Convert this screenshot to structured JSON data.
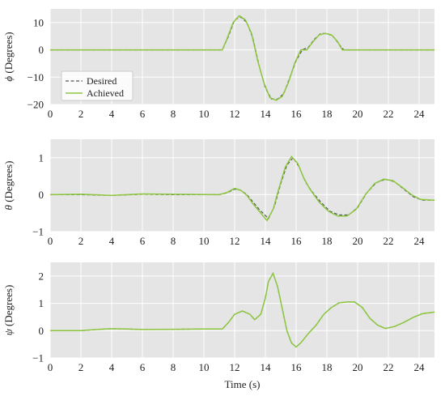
{
  "chart_data": [
    {
      "type": "line",
      "ylabel_symbol": "ϕ",
      "ylabel_text": " (Degrees)",
      "xlabel": "",
      "xlim": [
        0,
        25
      ],
      "ylim": [
        -20,
        15
      ],
      "xticks": [
        0,
        2,
        4,
        6,
        8,
        10,
        12,
        14,
        16,
        18,
        20,
        22,
        24
      ],
      "yticks": [
        -20,
        -10,
        0,
        10
      ],
      "grid": true,
      "legend": "center-left",
      "series": [
        {
          "name": "Desired",
          "style": "dashed",
          "color": "#555555",
          "points": [
            [
              0,
              0
            ],
            [
              11.2,
              0
            ],
            [
              11.6,
              5
            ],
            [
              12,
              11
            ],
            [
              12.4,
              12
            ],
            [
              12.8,
              10
            ],
            [
              13.2,
              4
            ],
            [
              13.6,
              -6
            ],
            [
              14,
              -14
            ],
            [
              14.4,
              -18
            ],
            [
              14.8,
              -18
            ],
            [
              15.2,
              -16
            ],
            [
              15.6,
              -10
            ],
            [
              16,
              -4
            ],
            [
              16.4,
              0
            ],
            [
              16.8,
              1
            ],
            [
              17.2,
              4
            ],
            [
              17.6,
              6
            ],
            [
              18,
              6
            ],
            [
              18.4,
              5
            ],
            [
              18.8,
              2
            ],
            [
              19.1,
              0
            ],
            [
              25,
              0
            ]
          ]
        },
        {
          "name": "Achieved",
          "style": "solid",
          "color": "#8cc63f",
          "points": [
            [
              0,
              0
            ],
            [
              11.2,
              0
            ],
            [
              11.5,
              4
            ],
            [
              11.9,
              10
            ],
            [
              12.3,
              12.5
            ],
            [
              12.7,
              11
            ],
            [
              13.1,
              6
            ],
            [
              13.5,
              -4
            ],
            [
              13.9,
              -12
            ],
            [
              14.3,
              -17.5
            ],
            [
              14.7,
              -18.5
            ],
            [
              15.1,
              -17
            ],
            [
              15.5,
              -12
            ],
            [
              15.9,
              -5
            ],
            [
              16.3,
              0
            ],
            [
              16.7,
              0
            ],
            [
              17.1,
              3
            ],
            [
              17.5,
              5.5
            ],
            [
              17.9,
              6
            ],
            [
              18.3,
              5.5
            ],
            [
              18.7,
              3
            ],
            [
              19,
              0
            ],
            [
              25,
              0
            ]
          ]
        }
      ]
    },
    {
      "type": "line",
      "ylabel_symbol": "θ",
      "ylabel_text": " (Degrees)",
      "xlabel": "",
      "xlim": [
        0,
        25
      ],
      "ylim": [
        -1,
        1.5
      ],
      "xticks": [
        0,
        2,
        4,
        6,
        8,
        10,
        12,
        14,
        16,
        18,
        20,
        22,
        24
      ],
      "yticks": [
        -1,
        0,
        1
      ],
      "grid": true,
      "series": [
        {
          "name": "Desired",
          "style": "dashed",
          "color": "#555555",
          "points": [
            [
              0,
              0
            ],
            [
              2,
              0
            ],
            [
              4,
              -0.02
            ],
            [
              6,
              0.01
            ],
            [
              8,
              0
            ],
            [
              11,
              0
            ],
            [
              11.5,
              0.05
            ],
            [
              12,
              0.15
            ],
            [
              12.4,
              0.12
            ],
            [
              12.8,
              0
            ],
            [
              13.2,
              -0.2
            ],
            [
              13.6,
              -0.4
            ],
            [
              14.2,
              -0.65
            ],
            [
              14.6,
              -0.3
            ],
            [
              15,
              0.3
            ],
            [
              15.4,
              0.8
            ],
            [
              15.8,
              1.0
            ],
            [
              16.2,
              0.75
            ],
            [
              16.6,
              0.35
            ],
            [
              17,
              0.1
            ],
            [
              17.6,
              -0.2
            ],
            [
              18.2,
              -0.45
            ],
            [
              18.8,
              -0.55
            ],
            [
              19.4,
              -0.55
            ],
            [
              20,
              -0.35
            ],
            [
              20.6,
              0.05
            ],
            [
              21.2,
              0.32
            ],
            [
              21.8,
              0.42
            ],
            [
              22.4,
              0.35
            ],
            [
              23,
              0.15
            ],
            [
              23.6,
              -0.05
            ],
            [
              24.2,
              -0.15
            ],
            [
              25,
              -0.15
            ]
          ]
        },
        {
          "name": "Achieved",
          "style": "solid",
          "color": "#8cc63f",
          "points": [
            [
              0,
              0
            ],
            [
              2,
              0.01
            ],
            [
              4,
              -0.02
            ],
            [
              6,
              0.02
            ],
            [
              8,
              0.01
            ],
            [
              11,
              0
            ],
            [
              11.5,
              0.06
            ],
            [
              12,
              0.17
            ],
            [
              12.4,
              0.12
            ],
            [
              12.8,
              -0.02
            ],
            [
              13.2,
              -0.25
            ],
            [
              13.6,
              -0.45
            ],
            [
              14.1,
              -0.7
            ],
            [
              14.5,
              -0.4
            ],
            [
              14.9,
              0.2
            ],
            [
              15.3,
              0.75
            ],
            [
              15.7,
              1.03
            ],
            [
              16.1,
              0.85
            ],
            [
              16.5,
              0.45
            ],
            [
              16.9,
              0.15
            ],
            [
              17.5,
              -0.2
            ],
            [
              18.1,
              -0.45
            ],
            [
              18.7,
              -0.58
            ],
            [
              19.3,
              -0.58
            ],
            [
              19.9,
              -0.4
            ],
            [
              20.5,
              0.0
            ],
            [
              21.1,
              0.3
            ],
            [
              21.7,
              0.42
            ],
            [
              22.3,
              0.38
            ],
            [
              22.9,
              0.2
            ],
            [
              23.5,
              0.0
            ],
            [
              24.1,
              -0.13
            ],
            [
              25,
              -0.15
            ]
          ]
        }
      ]
    },
    {
      "type": "line",
      "ylabel_symbol": "ψ",
      "ylabel_text": " (Degrees)",
      "xlabel": "Time (s)",
      "xlim": [
        0,
        25
      ],
      "ylim": [
        -1,
        2.5
      ],
      "xticks": [
        0,
        2,
        4,
        6,
        8,
        10,
        12,
        14,
        16,
        18,
        20,
        22,
        24
      ],
      "yticks": [
        -1,
        0,
        1,
        2
      ],
      "grid": true,
      "series": [
        {
          "name": "Desired",
          "style": "dashed",
          "color": "#555555",
          "points": [
            [
              0,
              0
            ],
            [
              2,
              0
            ],
            [
              3,
              0.04
            ],
            [
              4,
              0.07
            ],
            [
              5,
              0.06
            ],
            [
              6,
              0.04
            ],
            [
              8,
              0.05
            ],
            [
              10,
              0.06
            ],
            [
              11.2,
              0.06
            ],
            [
              11.6,
              0.3
            ],
            [
              12,
              0.6
            ],
            [
              12.5,
              0.72
            ],
            [
              13,
              0.6
            ],
            [
              13.3,
              0.4
            ],
            [
              13.7,
              0.6
            ],
            [
              14,
              1.2
            ],
            [
              14.2,
              1.8
            ],
            [
              14.5,
              2.1
            ],
            [
              14.8,
              1.6
            ],
            [
              15.1,
              0.8
            ],
            [
              15.4,
              0.0
            ],
            [
              15.7,
              -0.45
            ],
            [
              16,
              -0.6
            ],
            [
              16.3,
              -0.45
            ],
            [
              16.8,
              -0.1
            ],
            [
              17.3,
              0.2
            ],
            [
              17.8,
              0.6
            ],
            [
              18.3,
              0.85
            ],
            [
              18.8,
              1.02
            ],
            [
              19.3,
              1.05
            ],
            [
              19.8,
              1.05
            ],
            [
              20.3,
              0.85
            ],
            [
              20.8,
              0.45
            ],
            [
              21.3,
              0.2
            ],
            [
              21.8,
              0.08
            ],
            [
              22.4,
              0.15
            ],
            [
              23,
              0.3
            ],
            [
              23.6,
              0.48
            ],
            [
              24.2,
              0.62
            ],
            [
              25,
              0.68
            ]
          ]
        },
        {
          "name": "Achieved",
          "style": "solid",
          "color": "#8cc63f",
          "points": [
            [
              0,
              0
            ],
            [
              2,
              0
            ],
            [
              3,
              0.04
            ],
            [
              4,
              0.07
            ],
            [
              5,
              0.06
            ],
            [
              6,
              0.04
            ],
            [
              8,
              0.05
            ],
            [
              10,
              0.06
            ],
            [
              11.2,
              0.06
            ],
            [
              11.6,
              0.3
            ],
            [
              12,
              0.6
            ],
            [
              12.5,
              0.72
            ],
            [
              13,
              0.6
            ],
            [
              13.3,
              0.4
            ],
            [
              13.7,
              0.6
            ],
            [
              14,
              1.2
            ],
            [
              14.2,
              1.8
            ],
            [
              14.5,
              2.1
            ],
            [
              14.8,
              1.6
            ],
            [
              15.1,
              0.8
            ],
            [
              15.4,
              0.0
            ],
            [
              15.7,
              -0.45
            ],
            [
              16,
              -0.6
            ],
            [
              16.3,
              -0.45
            ],
            [
              16.8,
              -0.1
            ],
            [
              17.3,
              0.2
            ],
            [
              17.8,
              0.6
            ],
            [
              18.3,
              0.85
            ],
            [
              18.8,
              1.02
            ],
            [
              19.3,
              1.05
            ],
            [
              19.8,
              1.05
            ],
            [
              20.3,
              0.85
            ],
            [
              20.8,
              0.45
            ],
            [
              21.3,
              0.2
            ],
            [
              21.8,
              0.08
            ],
            [
              22.4,
              0.15
            ],
            [
              23,
              0.3
            ],
            [
              23.6,
              0.48
            ],
            [
              24.2,
              0.62
            ],
            [
              25,
              0.68
            ]
          ]
        }
      ]
    }
  ]
}
